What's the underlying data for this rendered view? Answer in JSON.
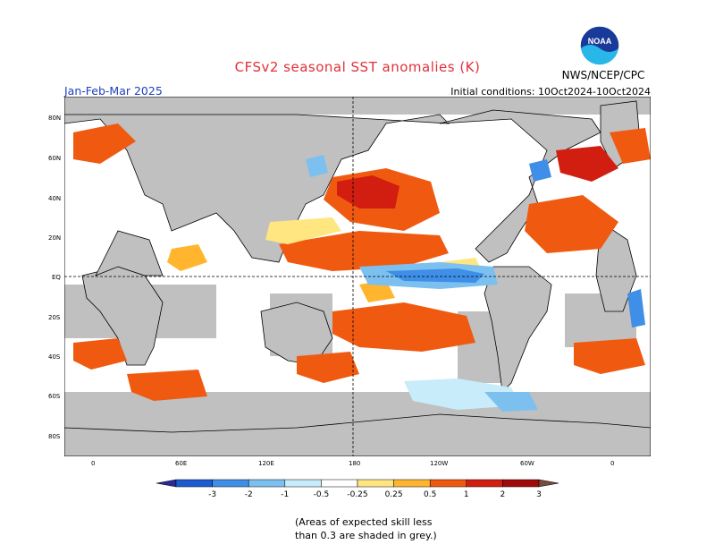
{
  "header": {
    "title": "CFSv2 seasonal SST anomalies (K)",
    "period": "Jan-Feb-Mar 2025",
    "initial_conditions": "Initial conditions: 10Oct2024-10Oct2024",
    "agency": "NWS/NCEP/CPC",
    "logo_text": "NOAA"
  },
  "map": {
    "lat_labels": [
      "80N",
      "60N",
      "40N",
      "20N",
      "EQ",
      "20S",
      "40S",
      "60S",
      "80S"
    ],
    "lon_labels": [
      "0",
      "60E",
      "120E",
      "180",
      "120W",
      "60W",
      "0"
    ],
    "land_color": "#c0c0c0",
    "ocean_color": "#ffffff"
  },
  "colorbar": {
    "labels": [
      "-3",
      "-2",
      "-1",
      "-0.5",
      "-0.25",
      "0.25",
      "0.5",
      "1",
      "2",
      "3"
    ],
    "colors": [
      "#2a2a9a",
      "#1e5ad0",
      "#3f8ee8",
      "#7cc0f0",
      "#c8ecfa",
      "#ffffff",
      "#ffe680",
      "#ffb52e",
      "#f05a10",
      "#d21e10",
      "#a00a0a",
      "#7a4a3a"
    ]
  },
  "note": {
    "line1": "(Areas of expected skill less",
    "line2": "than 0.3 are shaded in grey.)"
  }
}
